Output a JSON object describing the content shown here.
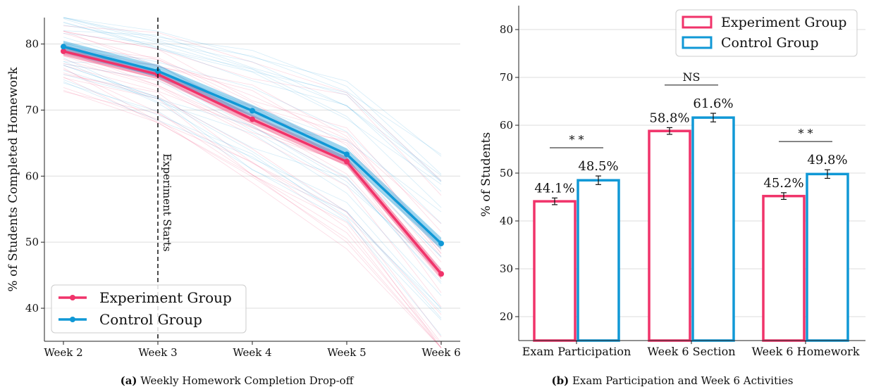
{
  "chart_data": [
    {
      "type": "line",
      "caption_label": "(a)",
      "caption_text": "Weekly Homework Completion Drop-off",
      "ylabel": "% of Students Completed Homework",
      "categories": [
        "Week 2",
        "Week 3",
        "Week 4",
        "Week 5",
        "Week 6"
      ],
      "yticks": [
        40,
        50,
        60,
        70,
        80
      ],
      "ylim": [
        35,
        84
      ],
      "grid": true,
      "legend_position": "bottom-left",
      "annotation": "Experiment Starts",
      "annotation_at": "Week 3",
      "series": [
        {
          "name": "Experiment Group",
          "color": "#f0336a",
          "values": [
            78.9,
            75.4,
            68.6,
            62.2,
            45.2
          ],
          "band": 0.7
        },
        {
          "name": "Control Group",
          "color": "#1098d6",
          "values": [
            79.6,
            75.9,
            69.9,
            63.3,
            49.8
          ],
          "band": 0.9
        }
      ]
    },
    {
      "type": "bar",
      "caption_label": "(b)",
      "caption_text": "Exam Participation and Week 6 Activities",
      "ylabel": "% of Students",
      "categories": [
        "Exam Participation",
        "Week 6 Section",
        "Week 6 Homework"
      ],
      "yticks": [
        20,
        30,
        40,
        50,
        60,
        70,
        80
      ],
      "ylim": [
        15,
        85
      ],
      "grid": true,
      "legend_position": "top-right",
      "series": [
        {
          "name": "Experiment Group",
          "color": "#f0336a",
          "values": [
            44.1,
            58.8,
            45.2
          ],
          "errors": [
            0.7,
            0.7,
            0.7
          ]
        },
        {
          "name": "Control Group",
          "color": "#1098d6",
          "values": [
            48.5,
            61.6,
            49.8
          ],
          "errors": [
            0.9,
            0.9,
            0.9
          ]
        }
      ],
      "value_labels": [
        [
          "44.1%",
          "58.8%",
          "45.2%"
        ],
        [
          "48.5%",
          "61.6%",
          "49.8%"
        ]
      ],
      "significance": [
        "* *",
        "NS",
        "* *"
      ]
    }
  ]
}
